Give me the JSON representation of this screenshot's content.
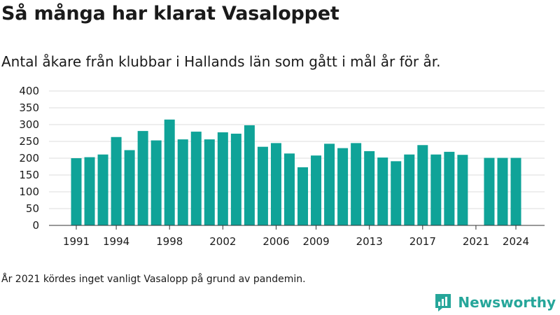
{
  "header": {
    "title": "Så många har klarat Vasaloppet",
    "subtitle": "Antal åkare från klubbar i Hallands län som gått i mål år för år."
  },
  "footer": {
    "note": "År 2021 kördes inget vanligt Vasalopp på grund av pandemin.",
    "brand": "Newsworthy"
  },
  "colors": {
    "bar": "#0fa398",
    "grid": "#dddddd",
    "axis": "#333333",
    "brand": "#26a69a"
  },
  "chart_data": {
    "type": "bar",
    "categories": [
      "1991",
      "1992",
      "1993",
      "1994",
      "1995",
      "1996",
      "1997",
      "1998",
      "1999",
      "2000",
      "2001",
      "2002",
      "2003",
      "2004",
      "2005",
      "2006",
      "2007",
      "2008",
      "2009",
      "2010",
      "2011",
      "2012",
      "2013",
      "2014",
      "2015",
      "2016",
      "2017",
      "2018",
      "2019",
      "2020",
      "2021",
      "2022",
      "2023",
      "2024"
    ],
    "values": [
      200,
      203,
      211,
      263,
      224,
      281,
      253,
      315,
      256,
      279,
      256,
      277,
      273,
      298,
      234,
      245,
      214,
      173,
      208,
      243,
      230,
      245,
      221,
      202,
      191,
      211,
      239,
      211,
      219,
      210,
      null,
      201,
      201,
      201
    ],
    "x_tick_labels": [
      "1991",
      "1994",
      "1998",
      "2002",
      "2006",
      "2009",
      "2013",
      "2017",
      "2021",
      "2024"
    ],
    "y_ticks": [
      0,
      50,
      100,
      150,
      200,
      250,
      300,
      350,
      400
    ],
    "ylim": [
      0,
      400
    ],
    "grid": true
  }
}
